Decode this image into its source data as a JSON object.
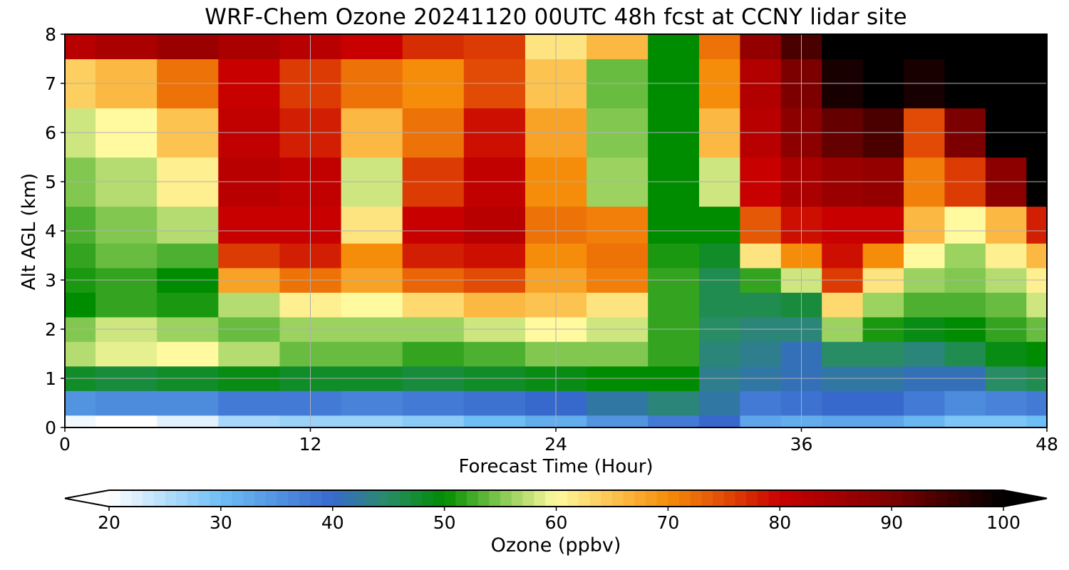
{
  "chart_data": {
    "type": "heatmap",
    "title": "WRF-Chem Ozone  20241120 00UTC 48h fcst at CCNY lidar site",
    "xlabel": "Forecast Time (Hour)",
    "ylabel": "Alt AGL (km)",
    "xlim": [
      0,
      48
    ],
    "ylim": [
      0,
      8
    ],
    "xticks": [
      "0",
      "12",
      "24",
      "36",
      "48"
    ],
    "yticks": [
      "0",
      "1",
      "2",
      "3",
      "4",
      "5",
      "6",
      "7",
      "8"
    ],
    "grid": true,
    "colorbar": {
      "label": "Ozone  (ppbv)",
      "range": [
        20,
        100
      ],
      "extend": "both",
      "ticks": [
        "20",
        "30",
        "40",
        "50",
        "60",
        "70",
        "80",
        "90",
        "100"
      ]
    },
    "x": [
      0,
      3,
      6,
      9,
      12,
      15,
      18,
      21,
      24,
      27,
      30,
      32,
      34,
      36,
      38,
      40,
      42,
      44,
      46,
      48
    ],
    "y": [
      0,
      0.5,
      1,
      1.5,
      2,
      2.5,
      3,
      3.5,
      4,
      5,
      6,
      7,
      8
    ],
    "z": [
      [
        21,
        35,
        48,
        57,
        55,
        50,
        51,
        52,
        53,
        55,
        58,
        64,
        82
      ],
      [
        20,
        36,
        47,
        59,
        58,
        52,
        52,
        54,
        55,
        57,
        60,
        66,
        84
      ],
      [
        22,
        36,
        48,
        60,
        56,
        51,
        50,
        53,
        57,
        61,
        65,
        72,
        86
      ],
      [
        26,
        38,
        49,
        57,
        54,
        57,
        68,
        76,
        80,
        82,
        81,
        80,
        84
      ],
      [
        27,
        38,
        48,
        54,
        56,
        61,
        72,
        78,
        80,
        81,
        78,
        76,
        82
      ],
      [
        27,
        37,
        48,
        54,
        56,
        60,
        68,
        70,
        62,
        58,
        66,
        72,
        80
      ],
      [
        28,
        38,
        47,
        52,
        56,
        63,
        73,
        78,
        80,
        76,
        72,
        70,
        77
      ],
      [
        30,
        39,
        48,
        53,
        58,
        66,
        75,
        79,
        82,
        81,
        79,
        75,
        76
      ],
      [
        32,
        40,
        49,
        55,
        60,
        65,
        68,
        70,
        72,
        70,
        68,
        65,
        62
      ],
      [
        35,
        42,
        50,
        55,
        58,
        62,
        71,
        72,
        71,
        56,
        55,
        54,
        66
      ],
      [
        38,
        44,
        50,
        52,
        52,
        52,
        52,
        51,
        50,
        50,
        50,
        50,
        50
      ],
      [
        40,
        42,
        43,
        44,
        45,
        46,
        46,
        48,
        50,
        58,
        66,
        70,
        72
      ],
      [
        33,
        38,
        42,
        43,
        44,
        46,
        52,
        62,
        74,
        80,
        82,
        83,
        87
      ],
      [
        32,
        39,
        41,
        41,
        44,
        47,
        58,
        70,
        79,
        84,
        88,
        90,
        94
      ],
      [
        33,
        40,
        42,
        45,
        56,
        63,
        76,
        79,
        80,
        86,
        92,
        98,
        103
      ],
      [
        33,
        40,
        42,
        45,
        51,
        56,
        62,
        70,
        80,
        87,
        94,
        101,
        104
      ],
      [
        31,
        38,
        41,
        44,
        49,
        53,
        56,
        60,
        66,
        71,
        75,
        98,
        104
      ],
      [
        29,
        36,
        41,
        46,
        50,
        53,
        55,
        56,
        60,
        76,
        90,
        103,
        104
      ],
      [
        29,
        37,
        45,
        49,
        52,
        54,
        57,
        61,
        66,
        88,
        102,
        104,
        104
      ],
      [
        30,
        38,
        46,
        50,
        54,
        58,
        61,
        66,
        78,
        100,
        104,
        104,
        104
      ]
    ]
  }
}
